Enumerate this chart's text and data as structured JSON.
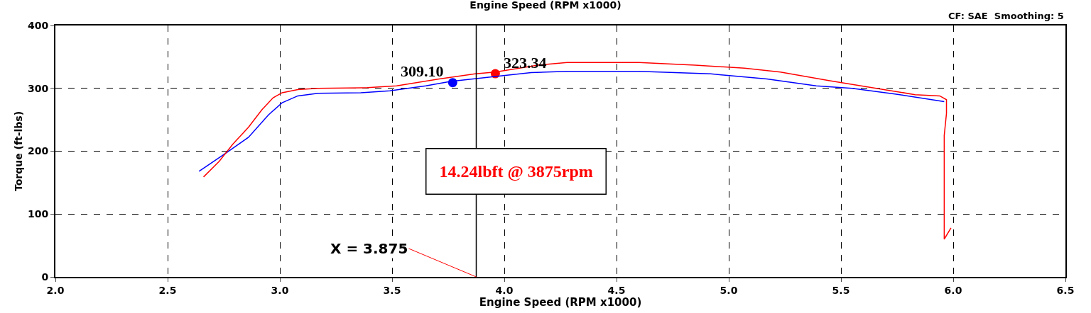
{
  "chart_data": {
    "type": "line",
    "title": "Engine Speed (RPM x1000)",
    "xlabel": "Engine Speed (RPM x1000)",
    "ylabel": "Torque (ft-lbs)",
    "xlim": [
      2.0,
      6.5
    ],
    "xticks": [
      {
        "value": 2,
        "label": "2.0"
      },
      {
        "value": 2.5,
        "label": "2.5"
      },
      {
        "value": 3,
        "label": "3.0"
      },
      {
        "value": 3.5,
        "label": "3.5"
      },
      {
        "value": 4,
        "label": "4.0"
      },
      {
        "value": 4.5,
        "label": "4.5"
      },
      {
        "value": 5,
        "label": "5.0"
      },
      {
        "value": 5.5,
        "label": "5.5"
      },
      {
        "value": 6,
        "label": "6.0"
      },
      {
        "value": 6.5,
        "label": "6.5"
      }
    ],
    "ylim": [
      0,
      400
    ],
    "yticks": [
      0,
      100,
      200,
      300,
      400
    ],
    "grid": true,
    "marker": "none",
    "line_style": "solid",
    "series": [
      {
        "color": "#0000ff",
        "x": [
          2.64,
          2.76,
          2.86,
          2.95,
          3.01,
          3.08,
          3.17,
          3.36,
          3.49,
          3.65,
          3.76,
          3.96,
          4.12,
          4.28,
          4.6,
          4.92,
          5.17,
          5.39,
          5.55,
          5.74,
          5.96
        ],
        "values": [
          168,
          197,
          222,
          258,
          277,
          288,
          292,
          293,
          296,
          304,
          311,
          319,
          325,
          327,
          327,
          323,
          315,
          304,
          300,
          291,
          279
        ]
      },
      {
        "color": "#ff0000",
        "x": [
          2.66,
          2.73,
          2.79,
          2.86,
          2.92,
          2.97,
          3.01,
          3.08,
          3.17,
          3.39,
          3.52,
          3.71,
          3.87,
          3.96,
          4.15,
          4.28,
          4.6,
          4.85,
          5.07,
          5.23,
          5.45,
          5.71,
          5.83,
          5.94,
          5.97,
          5.97,
          5.96,
          5.96,
          5.96,
          5.99
        ],
        "values": [
          159,
          184,
          211,
          238,
          266,
          285,
          293,
          298,
          300,
          301,
          304,
          315,
          323,
          326,
          337,
          341,
          341,
          337,
          332,
          326,
          312,
          297,
          290,
          288,
          282,
          260,
          225,
          63,
          60,
          78
        ]
      }
    ],
    "ref_lines": [
      {
        "axis": "x",
        "value": 3.875,
        "label": "X = 3.875",
        "color": "#000000",
        "line_style": "solid"
      }
    ],
    "annotations": [
      {
        "text": "309.10",
        "x": 3.77,
        "y": 309.1
      },
      {
        "text": "323.34",
        "x": 3.96,
        "y": 323.34
      },
      "14.24lbft @ 3875rpm",
      "CF: SAE  Smoothing: 5"
    ]
  }
}
